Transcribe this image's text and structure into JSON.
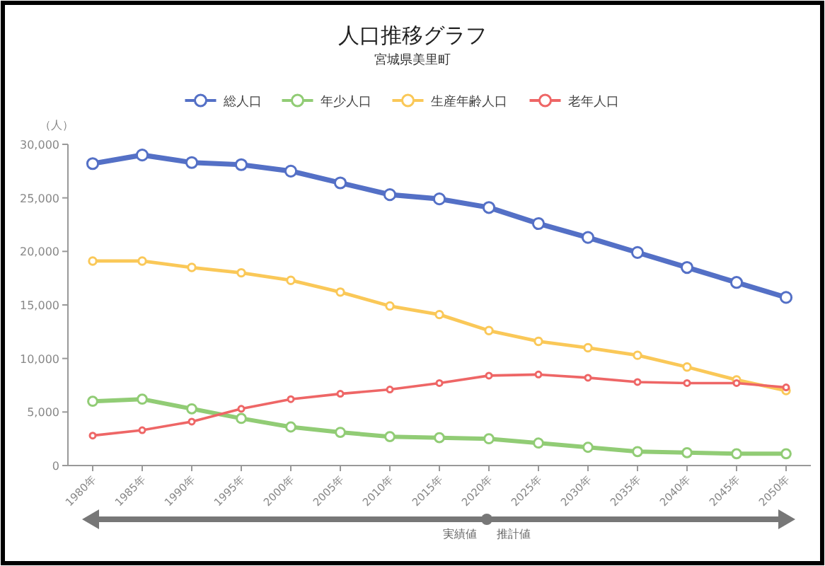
{
  "chart_data": {
    "type": "line",
    "title": "人口推移グラフ",
    "subtitle": "宮城県美里町",
    "ylabel": "（人）",
    "categories": [
      "1980年",
      "1985年",
      "1990年",
      "1995年",
      "2000年",
      "2005年",
      "2010年",
      "2015年",
      "2020年",
      "2025年",
      "2030年",
      "2035年",
      "2040年",
      "2045年",
      "2050年"
    ],
    "series": [
      {
        "name": "総人口",
        "color": "#5470c6",
        "values": [
          28200,
          29000,
          28300,
          28100,
          27500,
          26400,
          25300,
          24900,
          24100,
          22600,
          21300,
          19900,
          18500,
          17100,
          15700
        ]
      },
      {
        "name": "年少人口",
        "color": "#91cc75",
        "values": [
          6000,
          6200,
          5300,
          4400,
          3600,
          3100,
          2700,
          2600,
          2500,
          2100,
          1700,
          1300,
          1200,
          1100,
          1100
        ]
      },
      {
        "name": "生産年齢人口",
        "color": "#fac858",
        "values": [
          19100,
          19100,
          18500,
          18000,
          17300,
          16200,
          14900,
          14100,
          12600,
          11600,
          11000,
          10300,
          9200,
          8000,
          7000
        ]
      },
      {
        "name": "老年人口",
        "color": "#ee6666",
        "values": [
          2800,
          3300,
          4100,
          5300,
          6200,
          6700,
          7100,
          7700,
          8400,
          8500,
          8200,
          7800,
          7700,
          7700,
          7300
        ]
      }
    ],
    "ylim": [
      0,
      30000
    ],
    "yticks": [
      0,
      {
        "value": 5000,
        "label": "5,000"
      },
      {
        "value": 10000,
        "label": "10,000"
      },
      {
        "value": 15000,
        "label": "15,000"
      },
      {
        "value": 20000,
        "label": "20,000"
      },
      {
        "value": 25000,
        "label": "25,000"
      },
      {
        "value": 30000,
        "label": "30,000"
      }
    ],
    "legend": "top",
    "marker": "circle",
    "line_style": "solid",
    "grid": false,
    "annotations": [
      "実績値",
      "推計値"
    ]
  }
}
